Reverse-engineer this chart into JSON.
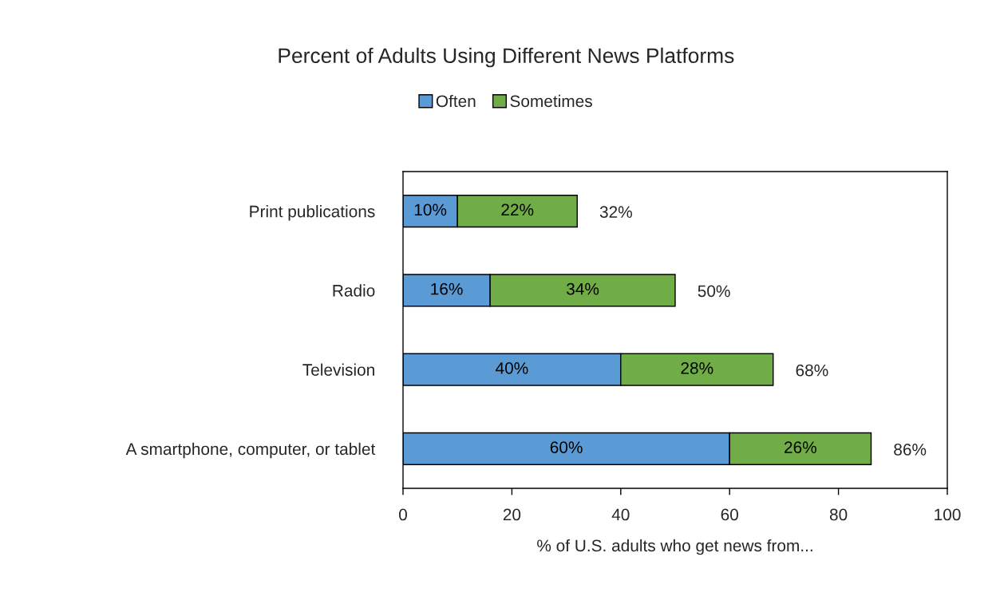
{
  "chart_data": {
    "type": "bar",
    "orientation": "horizontal",
    "stacked": true,
    "title": "Percent of Adults Using Different News Platforms",
    "xlabel": "% of U.S. adults who get news from...",
    "categories": [
      "Print publications",
      "Radio",
      "Television",
      "A smartphone, computer, or tablet"
    ],
    "series": [
      {
        "name": "Often",
        "color": "#5b9bd5",
        "values": [
          10,
          16,
          40,
          60
        ],
        "value_labels": [
          "10%",
          "16%",
          "40%",
          "60%"
        ]
      },
      {
        "name": "Sometimes",
        "color": "#70ad47",
        "values": [
          22,
          34,
          28,
          26
        ],
        "value_labels": [
          "22%",
          "34%",
          "28%",
          "26%"
        ]
      }
    ],
    "totals": [
      "32%",
      "50%",
      "68%",
      "86%"
    ],
    "xlim": [
      0,
      100
    ],
    "xticks": [
      0,
      20,
      40,
      60,
      80,
      100
    ],
    "grid": false,
    "legend": "top"
  }
}
